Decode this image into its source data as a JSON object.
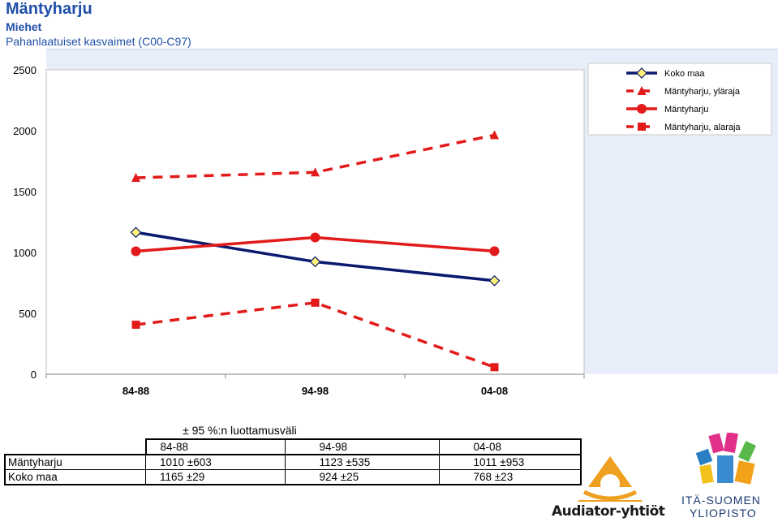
{
  "header": {
    "title": "Mäntyharju",
    "subtitle": "Miehet",
    "subtitle2": "Pahanlaatuiset kasvaimet (C00-C97)"
  },
  "chart_data": {
    "type": "line",
    "categories": [
      "84-88",
      "94-98",
      "04-08"
    ],
    "ylim": [
      0,
      2500
    ],
    "yticks": [
      0,
      500,
      1000,
      1500,
      2000,
      2500
    ],
    "legend_position": "top-right",
    "series": [
      {
        "name": "Koko maa",
        "values": [
          1165,
          924,
          768
        ],
        "color": "#0a1a6e",
        "marker": "diamond",
        "dashed": false
      },
      {
        "name": "Mäntyharju, yläraja",
        "values": [
          1613,
          1658,
          1964
        ],
        "color": "#e21a1a",
        "marker": "triangle",
        "dashed": true
      },
      {
        "name": "Mäntyharju",
        "values": [
          1010,
          1123,
          1011
        ],
        "color": "#e21a1a",
        "marker": "circle",
        "dashed": false
      },
      {
        "name": "Mäntyharju, alaraja",
        "values": [
          407,
          588,
          58
        ],
        "color": "#e21a1a",
        "marker": "square",
        "dashed": true
      }
    ]
  },
  "table": {
    "caption": "± 95 %:n luottamusväli",
    "headers": [
      "84-88",
      "94-98",
      "04-08"
    ],
    "rows": [
      {
        "label": "Mäntyharju",
        "cells": [
          "1010 ±603",
          "1123 ±535",
          "1011 ±953"
        ]
      },
      {
        "label": "Koko maa",
        "cells": [
          "1165 ±29",
          "924 ±25",
          "768 ±23"
        ]
      }
    ]
  },
  "logos": {
    "audiator": "Audiator-yhtiöt",
    "uef_line1": "ITÄ-SUOMEN",
    "uef_line2": "YLIOPISTO"
  }
}
